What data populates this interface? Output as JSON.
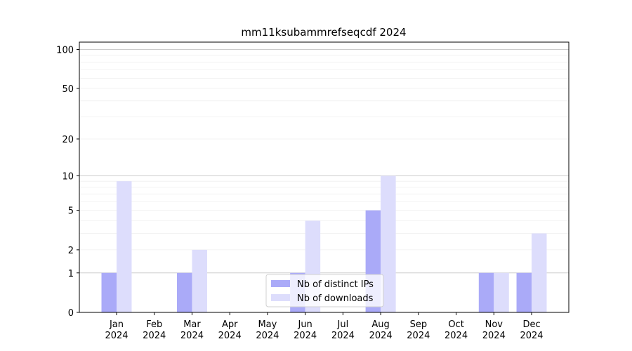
{
  "chart_data": {
    "type": "bar",
    "title": "mm11ksubammrefseqcdf 2024",
    "categories": [
      "Jan 2024",
      "Feb 2024",
      "Mar 2024",
      "Apr 2024",
      "May 2024",
      "Jun 2024",
      "Jul 2024",
      "Aug 2024",
      "Sep 2024",
      "Oct 2024",
      "Nov 2024",
      "Dec 2024"
    ],
    "series": [
      {
        "name": "Nb of distinct IPs",
        "color": "#aaaaf8",
        "values": [
          1,
          0,
          1,
          0,
          0,
          1,
          0,
          5,
          0,
          0,
          1,
          1
        ]
      },
      {
        "name": "Nb of downloads",
        "color": "#ddddfc",
        "values": [
          9,
          0,
          2,
          0,
          0,
          4,
          0,
          10,
          0,
          0,
          1,
          3
        ]
      }
    ],
    "y_scale": "log1p",
    "ylim": [
      0,
      114
    ],
    "yticks": [
      0,
      1,
      2,
      5,
      10,
      20,
      50,
      100
    ],
    "grid": true,
    "major_gridlines": [
      1,
      10,
      100
    ],
    "minor_gridlines": [
      2,
      3,
      4,
      5,
      6,
      7,
      8,
      9,
      20,
      30,
      40,
      50,
      60,
      70,
      80,
      90
    ],
    "legend": "lower center"
  }
}
